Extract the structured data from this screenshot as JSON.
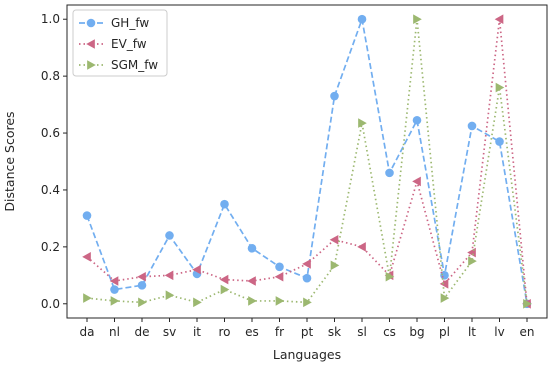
{
  "chart_data": {
    "type": "line",
    "title": "",
    "xlabel": "Languages",
    "ylabel": "Distance Scores",
    "categories": [
      "da",
      "nl",
      "de",
      "sv",
      "it",
      "ro",
      "es",
      "fr",
      "pt",
      "sk",
      "sl",
      "cs",
      "bg",
      "pl",
      "lt",
      "lv",
      "en"
    ],
    "ylim": [
      -0.05,
      1.05
    ],
    "yticks": [
      "0.0",
      "0.2",
      "0.4",
      "0.6",
      "0.8",
      "1.0"
    ],
    "grid": false,
    "legend_position": "top-left",
    "series": [
      {
        "name": "GH_fw",
        "color": "#72aef0",
        "linestyle": "dashed",
        "marker": "circle",
        "values": [
          0.31,
          0.05,
          0.065,
          0.24,
          0.105,
          0.35,
          0.195,
          0.13,
          0.09,
          0.73,
          1.0,
          0.46,
          0.645,
          0.1,
          0.625,
          0.57,
          0.0
        ]
      },
      {
        "name": "EV_fw",
        "color": "#cc6685",
        "linestyle": "dotted",
        "marker": "triangle-left",
        "values": [
          0.165,
          0.08,
          0.095,
          0.1,
          0.12,
          0.085,
          0.08,
          0.095,
          0.14,
          0.225,
          0.2,
          0.1,
          0.43,
          0.07,
          0.18,
          1.0,
          0.0
        ]
      },
      {
        "name": "SGM_fw",
        "color": "#9cb870",
        "linestyle": "dotted",
        "marker": "triangle-right",
        "values": [
          0.02,
          0.01,
          0.005,
          0.03,
          0.005,
          0.05,
          0.01,
          0.01,
          0.005,
          0.135,
          0.635,
          0.095,
          1.0,
          0.02,
          0.15,
          0.76,
          0.0
        ]
      }
    ]
  }
}
